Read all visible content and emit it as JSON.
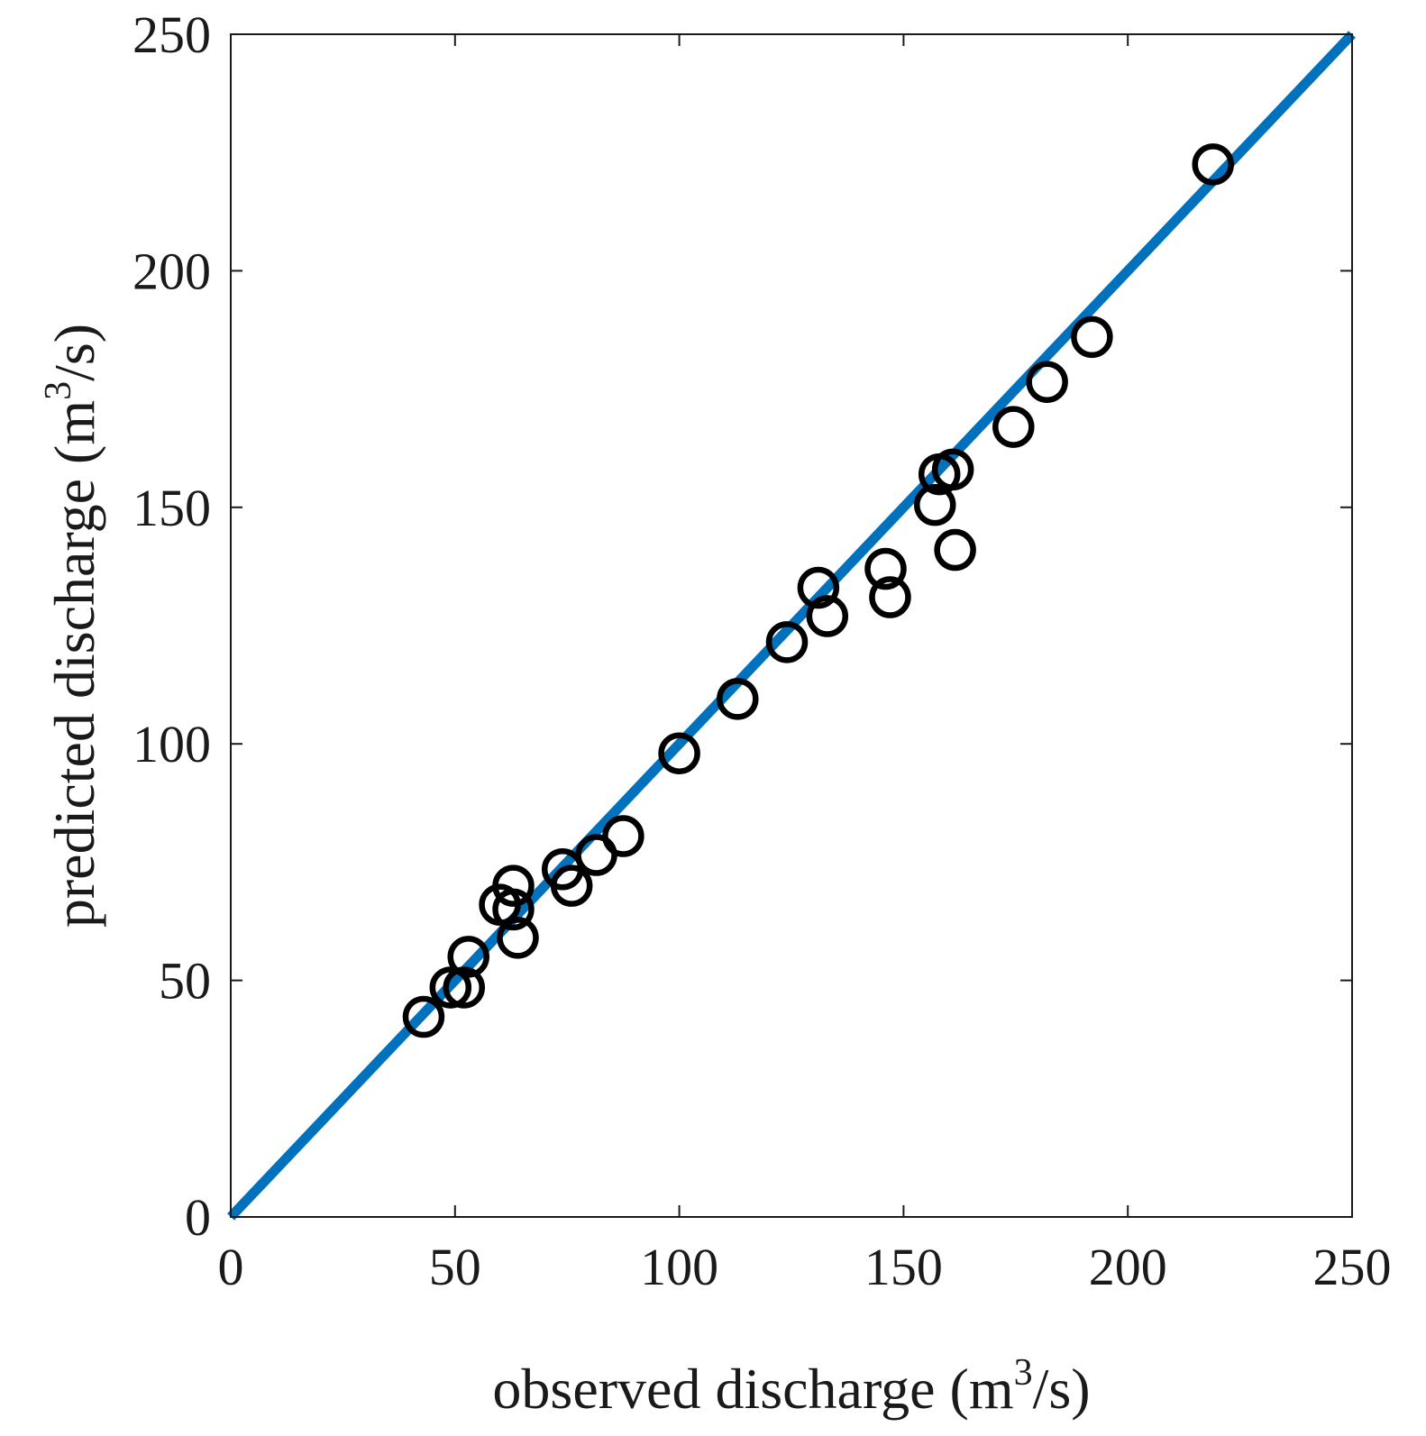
{
  "chart_data": {
    "type": "scatter",
    "xlabel": {
      "pre": "observed discharge (m",
      "sup": "3",
      "post": "/s)"
    },
    "ylabel": {
      "pre": "predicted discharge (m",
      "sup": "3",
      "post": "/s)"
    },
    "xlim": [
      0,
      250
    ],
    "ylim": [
      0,
      250
    ],
    "xticks": [
      0,
      50,
      100,
      150,
      200,
      250
    ],
    "yticks": [
      0,
      50,
      100,
      150,
      200,
      250
    ],
    "xtick_labels": [
      "0",
      "50",
      "100",
      "150",
      "200",
      "250"
    ],
    "ytick_labels": [
      "0",
      "50",
      "100",
      "150",
      "200",
      "250"
    ],
    "grid": false,
    "reference_line": {
      "x": [
        0,
        250
      ],
      "y": [
        0,
        250
      ],
      "color": "#0072BD"
    },
    "marker_color": "#000000",
    "points": [
      {
        "x": 43,
        "y": 42.3
      },
      {
        "x": 49,
        "y": 48.5
      },
      {
        "x": 52,
        "y": 48.5
      },
      {
        "x": 53,
        "y": 55
      },
      {
        "x": 60,
        "y": 66
      },
      {
        "x": 63,
        "y": 70
      },
      {
        "x": 63,
        "y": 65
      },
      {
        "x": 64,
        "y": 59
      },
      {
        "x": 74,
        "y": 73.5
      },
      {
        "x": 76,
        "y": 70
      },
      {
        "x": 81.5,
        "y": 76.5
      },
      {
        "x": 87.5,
        "y": 80.5
      },
      {
        "x": 100,
        "y": 98
      },
      {
        "x": 113,
        "y": 109.5
      },
      {
        "x": 124,
        "y": 121.5
      },
      {
        "x": 131,
        "y": 133
      },
      {
        "x": 133,
        "y": 127
      },
      {
        "x": 146,
        "y": 137
      },
      {
        "x": 147,
        "y": 131
      },
      {
        "x": 157,
        "y": 150.5
      },
      {
        "x": 158,
        "y": 157
      },
      {
        "x": 161,
        "y": 158
      },
      {
        "x": 161.5,
        "y": 141
      },
      {
        "x": 174.5,
        "y": 167
      },
      {
        "x": 182,
        "y": 176.5
      },
      {
        "x": 192,
        "y": 186
      },
      {
        "x": 219,
        "y": 222.5
      }
    ]
  }
}
